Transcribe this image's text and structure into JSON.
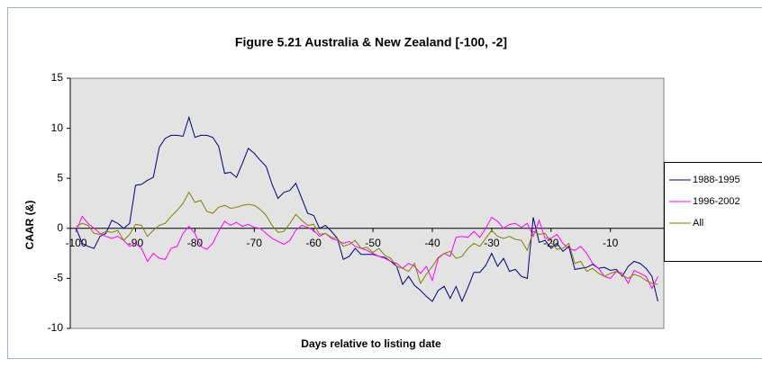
{
  "chart_data": {
    "type": "line",
    "title": "Figure 5.21 Australia & New Zealand [-100, -2]",
    "xlabel": "Days relative to listing date",
    "ylabel": "CAAR (&)",
    "x": [
      -100,
      -99,
      -98,
      -97,
      -96,
      -95,
      -94,
      -93,
      -92,
      -91,
      -90,
      -89,
      -88,
      -87,
      -86,
      -85,
      -84,
      -83,
      -82,
      -81,
      -80,
      -79,
      -78,
      -77,
      -76,
      -75,
      -74,
      -73,
      -72,
      -71,
      -70,
      -69,
      -68,
      -67,
      -66,
      -65,
      -64,
      -63,
      -62,
      -61,
      -60,
      -59,
      -58,
      -57,
      -56,
      -55,
      -54,
      -53,
      -52,
      -51,
      -50,
      -49,
      -48,
      -47,
      -46,
      -45,
      -44,
      -43,
      -42,
      -41,
      -40,
      -39,
      -38,
      -37,
      -36,
      -35,
      -34,
      -33,
      -32,
      -31,
      -30,
      -29,
      -28,
      -27,
      -26,
      -25,
      -24,
      -23,
      -22,
      -21,
      -20,
      -19,
      -18,
      -17,
      -16,
      -15,
      -14,
      -13,
      -12,
      -11,
      -10,
      -9,
      -8,
      -7,
      -6,
      -5,
      -4,
      -3,
      -2
    ],
    "series": [
      {
        "name": "1988-1995",
        "color": "#000080",
        "values": [
          0,
          -1.5,
          -1.8,
          -2.0,
          -0.8,
          -0.5,
          0.8,
          0.5,
          0,
          0.5,
          4.3,
          4.4,
          4.8,
          5.1,
          8.1,
          9.0,
          9.3,
          9.3,
          9.2,
          11.1,
          9.1,
          9.3,
          9.3,
          9.1,
          8.2,
          5.5,
          5.6,
          5.1,
          6.5,
          8.0,
          7.5,
          6.8,
          6.2,
          4.4,
          3.0,
          3.6,
          3.8,
          4.5,
          3.0,
          1.5,
          1.3,
          0,
          0.3,
          -0.3,
          -1.0,
          -3.1,
          -2.8,
          -2.0,
          -2.6,
          -2.6,
          -2.6,
          -2.8,
          -2.9,
          -3.3,
          -3.8,
          -5.6,
          -4.8,
          -5.7,
          -6.2,
          -6.8,
          -7.3,
          -6.2,
          -5.8,
          -7.0,
          -5.8,
          -7.3,
          -5.9,
          -4.4,
          -4.4,
          -3.7,
          -2.5,
          -3.8,
          -3.0,
          -4.3,
          -4.1,
          -4.8,
          -5.0,
          1.1,
          -1.4,
          -1.2,
          -2.0,
          -1.5,
          -2.3,
          -1.8,
          -4.1,
          -4.0,
          -3.9,
          -3.6,
          -4.0,
          -3.9,
          -4.2,
          -4.1,
          -4.8,
          -3.8,
          -3.3,
          -3.5,
          -4.0,
          -4.8,
          -7.3
        ]
      },
      {
        "name": "1996-2002",
        "color": "#ff00ff",
        "values": [
          -0.3,
          1.2,
          0.5,
          0,
          -0.5,
          -0.8,
          -1.0,
          -0.8,
          -1.2,
          -1.8,
          -1.5,
          -2.0,
          -3.3,
          -2.5,
          -3.0,
          -3.1,
          -2.0,
          -1.8,
          -0.5,
          0.2,
          -0.5,
          -1.8,
          -2.1,
          -1.5,
          -0.3,
          0.7,
          0.3,
          0.6,
          0.2,
          0.4,
          0.1,
          0,
          -0.5,
          -1.0,
          -1.3,
          -1.6,
          -1.2,
          -0.2,
          0.3,
          0.1,
          -0.2,
          -0.8,
          -0.5,
          -1.0,
          -1.2,
          -1.5,
          -1.3,
          -1.8,
          -2.0,
          -2.2,
          -2.5,
          -2.8,
          -3.0,
          -3.3,
          -3.5,
          -4.0,
          -3.5,
          -3.8,
          -4.5,
          -3.8,
          -5.2,
          -3.0,
          -2.5,
          -2.8,
          -0.9,
          -0.8,
          -0.9,
          -0.3,
          -0.9,
          0,
          1.1,
          0.7,
          0,
          0.4,
          0.5,
          0.1,
          0.5,
          -0.8,
          0.8,
          -1.0,
          -1.0,
          -0.6,
          -1.5,
          -2.0,
          -2.2,
          -1.8,
          -2.5,
          -3.5,
          -4.0,
          -4.8,
          -5.0,
          -4.3,
          -4.5,
          -5.5,
          -4.2,
          -4.5,
          -4.8,
          -6.0,
          -4.8
        ]
      },
      {
        "name": "All",
        "color": "#808000",
        "values": [
          0.2,
          0.5,
          0.3,
          -0.5,
          -0.6,
          -0.3,
          -0.4,
          -0.2,
          -1.2,
          -0.6,
          0.4,
          0.3,
          -0.8,
          -0.2,
          0.3,
          0.5,
          1.2,
          1.8,
          2.5,
          3.6,
          2.6,
          2.8,
          1.7,
          1.5,
          2.1,
          2.3,
          2.0,
          2.1,
          2.3,
          2.4,
          2.3,
          1.9,
          1.3,
          0.3,
          -0.4,
          -0.3,
          0.5,
          1.4,
          0.8,
          0.3,
          0.4,
          -0.6,
          -0.5,
          -0.9,
          -1.0,
          -1.8,
          -1.6,
          -1.2,
          -2.0,
          -1.9,
          -2.4,
          -2.0,
          -2.7,
          -3.0,
          -3.8,
          -4.0,
          -4.3,
          -3.5,
          -5.5,
          -4.6,
          -3.8,
          -2.9,
          -2.5,
          -2.3,
          -3.0,
          -2.8,
          -2.0,
          -1.5,
          -1.8,
          -1.0,
          -0.2,
          -0.8,
          -1.0,
          -0.8,
          -1.1,
          -1.2,
          -2.2,
          -0.3,
          -0.6,
          -0.5,
          -1.4,
          -2.1,
          -2.0,
          -1.5,
          -3.5,
          -3.3,
          -4.3,
          -4.0,
          -4.5,
          -4.8,
          -4.5,
          -4.3,
          -4.7,
          -5.0,
          -4.6,
          -4.8,
          -5.2,
          -5.5,
          -5.6
        ]
      }
    ],
    "xlim": [
      -101,
      -1
    ],
    "xticks": [
      -100,
      -90,
      -80,
      -70,
      -60,
      -50,
      -40,
      -30,
      -20,
      -10
    ],
    "ylim": [
      -10,
      15
    ],
    "yticks": [
      -10,
      -5,
      0,
      5,
      10,
      15
    ],
    "plot_background": "#e3e3e3",
    "legend": "right"
  }
}
